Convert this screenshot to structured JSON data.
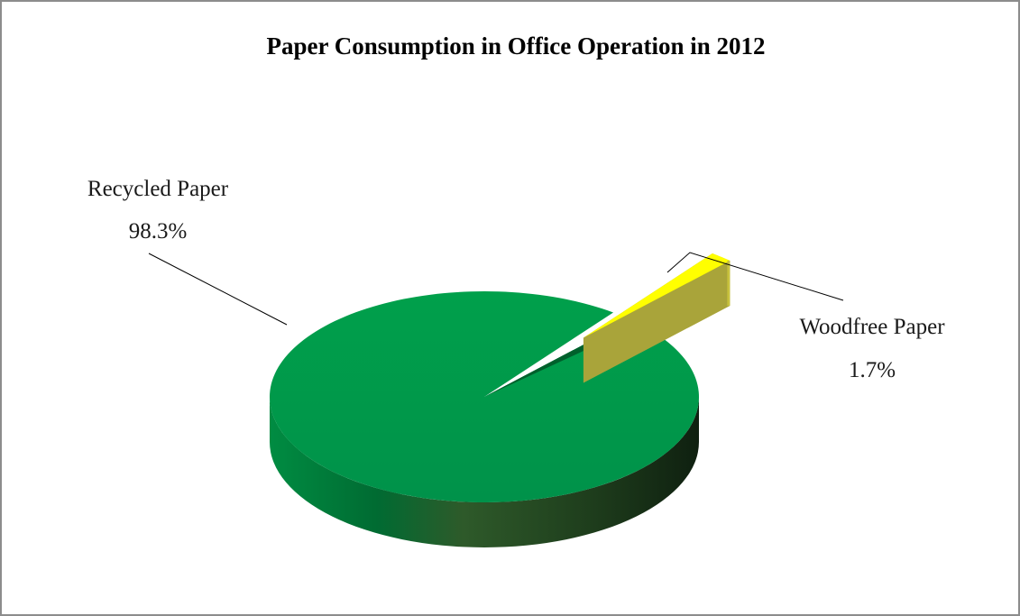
{
  "chart_data": {
    "type": "pie",
    "title": "Paper Consumption in Office Operation in 2012",
    "categories": [
      "Recycled Paper",
      "Woodfree Paper"
    ],
    "values": [
      98.3,
      1.7
    ],
    "value_labels": [
      "98.3%",
      "1.7%"
    ],
    "unit": "%",
    "legend": "none",
    "style": "3d-exploded",
    "colors": {
      "Recycled Paper": "#009646",
      "Woodfree Paper": "#ffff00"
    }
  }
}
